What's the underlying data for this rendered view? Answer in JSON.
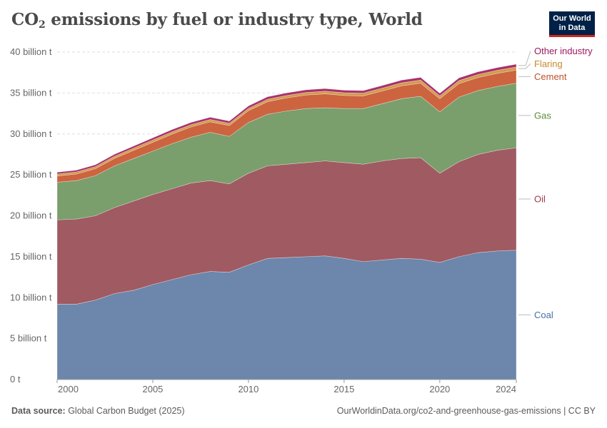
{
  "title_main": "CO",
  "title_sub": "2",
  "title_rest": " emissions by fuel or industry type, World",
  "logo": {
    "line1": "Our World",
    "line2": "in Data"
  },
  "footer": {
    "source_label": "Data source:",
    "source_text": " Global Carbon Budget (2025)",
    "url": "OurWorldinData.org/co2-and-greenhouse-gas-emissions | CC BY"
  },
  "chart_data": {
    "type": "area",
    "stacked": true,
    "y_tick_labels": [
      "0 t",
      "5 billion t",
      "10 billion t",
      "15 billion t",
      "20 billion t",
      "25 billion t",
      "30 billion t",
      "35 billion t",
      "40 billion t"
    ],
    "x_tick_labels": [
      "2000",
      "2005",
      "2010",
      "2015",
      "2020",
      "2024"
    ],
    "x": [
      2000,
      2001,
      2002,
      2003,
      2004,
      2005,
      2006,
      2007,
      2008,
      2009,
      2010,
      2011,
      2012,
      2013,
      2014,
      2015,
      2016,
      2017,
      2018,
      2019,
      2020,
      2021,
      2022,
      2023,
      2024
    ],
    "ylim": [
      0,
      40
    ],
    "grid": true,
    "legend": "right, inline labels",
    "series": [
      {
        "name": "Coal",
        "color": "#6d86ab",
        "values": [
          9.2,
          9.2,
          9.7,
          10.5,
          10.9,
          11.6,
          12.2,
          12.8,
          13.2,
          13.1,
          14.0,
          14.8,
          14.9,
          15.0,
          15.1,
          14.8,
          14.4,
          14.6,
          14.8,
          14.7,
          14.3,
          15.0,
          15.5,
          15.7,
          15.8
        ]
      },
      {
        "name": "Oil",
        "color": "#a05a62",
        "values": [
          10.3,
          10.4,
          10.3,
          10.5,
          10.9,
          11.0,
          11.1,
          11.2,
          11.1,
          10.8,
          11.2,
          11.3,
          11.4,
          11.5,
          11.6,
          11.7,
          11.9,
          12.1,
          12.2,
          12.4,
          10.9,
          11.6,
          12.0,
          12.3,
          12.5
        ]
      },
      {
        "name": "Gas",
        "color": "#7a9e6c",
        "values": [
          4.6,
          4.7,
          4.9,
          5.1,
          5.2,
          5.3,
          5.5,
          5.6,
          5.9,
          5.8,
          6.2,
          6.3,
          6.5,
          6.6,
          6.5,
          6.6,
          6.8,
          7.0,
          7.3,
          7.5,
          7.5,
          7.9,
          7.8,
          7.8,
          7.9
        ]
      },
      {
        "name": "Cement",
        "color": "#cc6440",
        "values": [
          0.75,
          0.8,
          0.85,
          0.92,
          1.0,
          1.08,
          1.17,
          1.25,
          1.28,
          1.33,
          1.45,
          1.55,
          1.6,
          1.65,
          1.7,
          1.6,
          1.55,
          1.55,
          1.57,
          1.6,
          1.6,
          1.65,
          1.6,
          1.6,
          1.6
        ]
      },
      {
        "name": "Flaring",
        "color": "#d49a4a",
        "values": [
          0.25,
          0.25,
          0.25,
          0.26,
          0.27,
          0.28,
          0.28,
          0.28,
          0.28,
          0.27,
          0.28,
          0.29,
          0.3,
          0.31,
          0.32,
          0.33,
          0.33,
          0.35,
          0.37,
          0.38,
          0.35,
          0.36,
          0.36,
          0.37,
          0.38
        ]
      },
      {
        "name": "Other industry",
        "color": "#a7326a",
        "values": [
          0.22,
          0.22,
          0.23,
          0.24,
          0.25,
          0.26,
          0.27,
          0.28,
          0.28,
          0.27,
          0.29,
          0.3,
          0.31,
          0.32,
          0.32,
          0.31,
          0.31,
          0.32,
          0.33,
          0.33,
          0.32,
          0.33,
          0.33,
          0.33,
          0.34
        ]
      }
    ],
    "legend_text_colors": {
      "Coal": "#4a6ea8",
      "Oil": "#a23a48",
      "Gas": "#5b8a3a",
      "Cement": "#c0502b",
      "Flaring": "#c68a2a",
      "Other industry": "#9c1a5e"
    }
  }
}
